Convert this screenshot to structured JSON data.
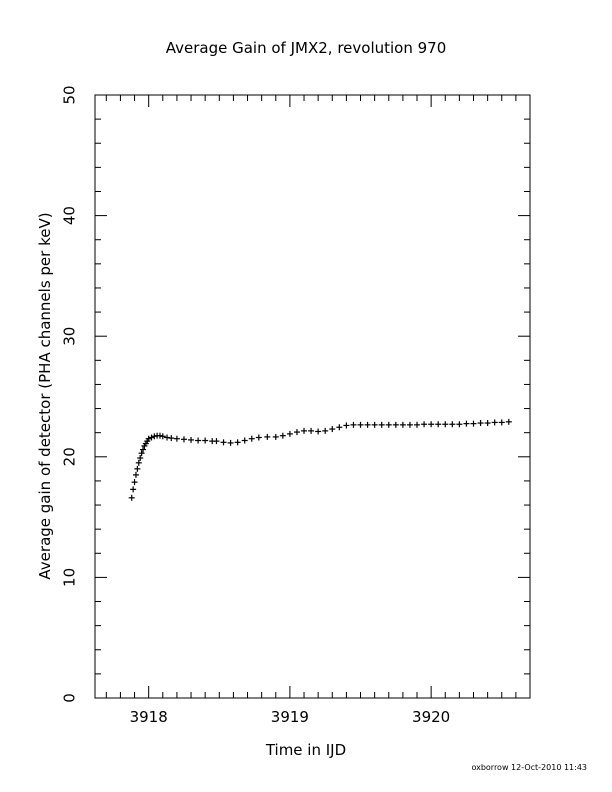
{
  "chart_data": {
    "type": "scatter",
    "title": "Average Gain of JMX2, revolution 970",
    "xlabel": "Time in IJD",
    "ylabel": "Average gain of detector (PHA channels per keV)",
    "xlim": [
      3917.62,
      3920.7
    ],
    "ylim": [
      0,
      50
    ],
    "x_ticks": [
      3918,
      3919,
      3920
    ],
    "x_tick_labels": [
      "3918",
      "3919",
      "3920"
    ],
    "y_ticks": [
      0,
      10,
      20,
      30,
      40,
      50
    ],
    "y_tick_labels": [
      "0",
      "10",
      "20",
      "30",
      "40",
      "50"
    ],
    "grid": false,
    "marker": "plus",
    "marker_color": "#000000",
    "series": [
      {
        "x": [
          3917.88,
          3917.89,
          3917.9,
          3917.91,
          3917.92,
          3917.93,
          3917.94,
          3917.95,
          3917.96,
          3917.97,
          3917.98,
          3917.99,
          3918.0,
          3918.02,
          3918.04,
          3918.06,
          3918.08,
          3918.1,
          3918.13,
          3918.16,
          3918.2,
          3918.25,
          3918.3,
          3918.35,
          3918.4,
          3918.45,
          3918.48,
          3918.53,
          3918.58,
          3918.63,
          3918.68,
          3918.73,
          3918.78,
          3918.84,
          3918.9,
          3918.95,
          3919.0,
          3919.05,
          3919.1,
          3919.15,
          3919.2,
          3919.25,
          3919.3,
          3919.35,
          3919.4,
          3919.45,
          3919.5,
          3919.55,
          3919.6,
          3919.65,
          3919.7,
          3919.75,
          3919.8,
          3919.85,
          3919.9,
          3919.95,
          3920.0,
          3920.05,
          3920.1,
          3920.15,
          3920.2,
          3920.25,
          3920.3,
          3920.35,
          3920.4,
          3920.45,
          3920.5,
          3920.55
        ],
        "y": [
          16.6,
          17.3,
          17.9,
          18.5,
          19.0,
          19.5,
          19.9,
          20.3,
          20.6,
          20.9,
          21.1,
          21.3,
          21.5,
          21.6,
          21.7,
          21.75,
          21.75,
          21.7,
          21.6,
          21.55,
          21.5,
          21.45,
          21.4,
          21.35,
          21.35,
          21.3,
          21.3,
          21.2,
          21.15,
          21.2,
          21.35,
          21.5,
          21.6,
          21.65,
          21.65,
          21.75,
          21.9,
          22.05,
          22.15,
          22.15,
          22.1,
          22.15,
          22.3,
          22.45,
          22.6,
          22.65,
          22.65,
          22.65,
          22.65,
          22.65,
          22.65,
          22.65,
          22.65,
          22.65,
          22.65,
          22.7,
          22.7,
          22.7,
          22.7,
          22.7,
          22.7,
          22.75,
          22.75,
          22.8,
          22.8,
          22.85,
          22.85,
          22.9
        ]
      }
    ]
  },
  "footer": {
    "credit": "oxborrow 12-Oct-2010 11:43"
  }
}
